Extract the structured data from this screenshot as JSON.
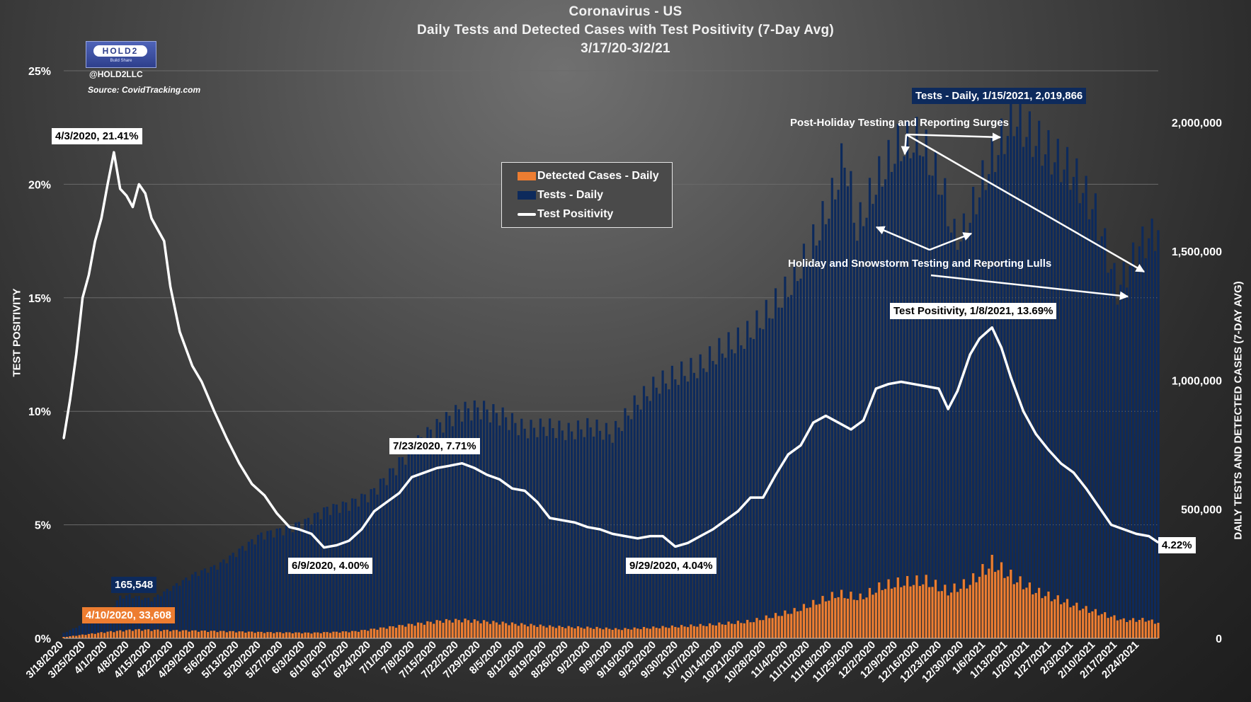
{
  "header": {
    "title": "Coronavirus - US",
    "subtitle": "Daily Tests and Detected Cases with Test Positivity (7-Day Avg)",
    "date_range": "3/17/20-3/2/21"
  },
  "branding": {
    "logo_text": "HOLD2",
    "logo_subtext": "Build  Share",
    "handle": "@HOLD2LLC",
    "source": "Source: CovidTracking.com"
  },
  "legend": {
    "cases_label": "Detected Cases - Daily",
    "tests_label": "Tests - Daily",
    "positivity_label": "Test Positivity"
  },
  "axes": {
    "left_title": "TEST POSITIVITY",
    "right_title": "DAILY TESTS AND DETECTED CASES (7-DAY AVG)"
  },
  "callouts": {
    "peak_positivity": "4/3/2020, 21.41%",
    "positivity_jun": "6/9/2020, 4.00%",
    "positivity_jul": "7/23/2020, 7.71%",
    "positivity_sep": "9/29/2020, 4.04%",
    "positivity_jan": "Test Positivity, 1/8/2021, 13.69%",
    "positivity_last": "4.22%",
    "tests_peak": "Tests - Daily, 1/15/2021, 2,019,866",
    "tests_apr": "165,548",
    "cases_apr": "4/10/2020, 33,608"
  },
  "notes": {
    "surges": "Post-Holiday Testing and Reporting Surges",
    "lulls": "Holiday and Snowstorm Testing and Reporting Lulls"
  },
  "colors": {
    "tests": "#0d2a5c",
    "cases": "#ed7d31",
    "positivity": "#ffffff",
    "background": "#3a3a3a"
  },
  "chart_data": {
    "type": "bar",
    "x_start": "2020-03-18",
    "x_end": "2021-03-02",
    "x_tick_labels": [
      "3/18/2020",
      "3/25/2020",
      "4/1/2020",
      "4/8/2020",
      "4/15/2020",
      "4/22/2020",
      "4/29/2020",
      "5/6/2020",
      "5/13/2020",
      "5/20/2020",
      "5/27/2020",
      "6/3/2020",
      "6/10/2020",
      "6/17/2020",
      "6/24/2020",
      "7/1/2020",
      "7/8/2020",
      "7/15/2020",
      "7/22/2020",
      "7/29/2020",
      "8/5/2020",
      "8/12/2020",
      "8/19/2020",
      "8/26/2020",
      "9/2/2020",
      "9/9/2020",
      "9/16/2020",
      "9/23/2020",
      "9/30/2020",
      "10/7/2020",
      "10/14/2020",
      "10/21/2020",
      "10/28/2020",
      "11/4/2020",
      "11/11/2020",
      "11/18/2020",
      "11/25/2020",
      "12/2/2020",
      "12/9/2020",
      "12/16/2020",
      "12/23/2020",
      "12/30/2020",
      "1/6/2021",
      "1/13/2021",
      "1/20/2021",
      "1/27/2021",
      "2/3/2021",
      "2/10/2021",
      "2/17/2021",
      "2/24/2021"
    ],
    "y_left": {
      "label": "TEST POSITIVITY",
      "min": 0,
      "max": 25,
      "ticks": [
        "0%",
        "5%",
        "10%",
        "15%",
        "20%",
        "25%"
      ]
    },
    "y_right": {
      "label": "DAILY TESTS AND DETECTED CASES (7-DAY AVG)",
      "min": 0,
      "max": 2200000,
      "ticks": [
        "0",
        "500,000",
        "1,000,000",
        "1,500,000",
        "2,000,000"
      ]
    },
    "series": [
      {
        "name": "Tests - Daily",
        "type": "bar",
        "axis": "right",
        "points": [
          [
            "2020-03-18",
            20000
          ],
          [
            "2020-03-25",
            60000
          ],
          [
            "2020-04-01",
            100000
          ],
          [
            "2020-04-05",
            160000
          ],
          [
            "2020-04-08",
            165548
          ],
          [
            "2020-04-15",
            150000
          ],
          [
            "2020-04-22",
            200000
          ],
          [
            "2020-04-29",
            250000
          ],
          [
            "2020-05-06",
            280000
          ],
          [
            "2020-05-13",
            340000
          ],
          [
            "2020-05-20",
            400000
          ],
          [
            "2020-05-27",
            420000
          ],
          [
            "2020-06-03",
            450000
          ],
          [
            "2020-06-10",
            500000
          ],
          [
            "2020-06-17",
            520000
          ],
          [
            "2020-06-24",
            560000
          ],
          [
            "2020-07-01",
            650000
          ],
          [
            "2020-07-08",
            750000
          ],
          [
            "2020-07-15",
            820000
          ],
          [
            "2020-07-22",
            880000
          ],
          [
            "2020-07-29",
            890000
          ],
          [
            "2020-08-05",
            860000
          ],
          [
            "2020-08-12",
            810000
          ],
          [
            "2020-08-19",
            820000
          ],
          [
            "2020-08-26",
            800000
          ],
          [
            "2020-09-02",
            820000
          ],
          [
            "2020-09-09",
            790000
          ],
          [
            "2020-09-16",
            900000
          ],
          [
            "2020-09-23",
            980000
          ],
          [
            "2020-09-30",
            1020000
          ],
          [
            "2020-10-07",
            1050000
          ],
          [
            "2020-10-14",
            1120000
          ],
          [
            "2020-10-21",
            1160000
          ],
          [
            "2020-10-28",
            1250000
          ],
          [
            "2020-11-04",
            1350000
          ],
          [
            "2020-11-11",
            1500000
          ],
          [
            "2020-11-18",
            1700000
          ],
          [
            "2020-11-22",
            1870000
          ],
          [
            "2020-11-26",
            1580000
          ],
          [
            "2020-12-02",
            1760000
          ],
          [
            "2020-12-09",
            1900000
          ],
          [
            "2020-12-16",
            1930000
          ],
          [
            "2020-12-23",
            1750000
          ],
          [
            "2020-12-27",
            1550000
          ],
          [
            "2020-12-30",
            1570000
          ],
          [
            "2021-01-06",
            1800000
          ],
          [
            "2021-01-15",
            2019866
          ],
          [
            "2021-01-20",
            1950000
          ],
          [
            "2021-01-27",
            1870000
          ],
          [
            "2021-02-03",
            1800000
          ],
          [
            "2021-02-10",
            1650000
          ],
          [
            "2021-02-17",
            1350000
          ],
          [
            "2021-02-20",
            1420000
          ],
          [
            "2021-02-24",
            1520000
          ],
          [
            "2021-03-02",
            1580000
          ]
        ]
      },
      {
        "name": "Detected Cases - Daily",
        "type": "bar",
        "axis": "right",
        "points": [
          [
            "2020-03-18",
            5000
          ],
          [
            "2020-03-25",
            15000
          ],
          [
            "2020-04-01",
            25000
          ],
          [
            "2020-04-10",
            33608
          ],
          [
            "2020-04-24",
            30000
          ],
          [
            "2020-05-08",
            27000
          ],
          [
            "2020-05-22",
            23000
          ],
          [
            "2020-06-05",
            21000
          ],
          [
            "2020-06-19",
            27000
          ],
          [
            "2020-07-03",
            48000
          ],
          [
            "2020-07-17",
            68000
          ],
          [
            "2020-07-24",
            70000
          ],
          [
            "2020-08-07",
            57000
          ],
          [
            "2020-08-21",
            45000
          ],
          [
            "2020-09-04",
            40000
          ],
          [
            "2020-09-11",
            35000
          ],
          [
            "2020-09-25",
            43000
          ],
          [
            "2020-10-09",
            51000
          ],
          [
            "2020-10-23",
            65000
          ],
          [
            "2020-11-06",
            105000
          ],
          [
            "2020-11-20",
            170000
          ],
          [
            "2020-11-27",
            155000
          ],
          [
            "2020-12-04",
            200000
          ],
          [
            "2020-12-11",
            215000
          ],
          [
            "2020-12-18",
            220000
          ],
          [
            "2020-12-25",
            180000
          ],
          [
            "2021-01-01",
            215000
          ],
          [
            "2021-01-08",
            290000
          ],
          [
            "2021-01-15",
            230000
          ],
          [
            "2021-01-22",
            180000
          ],
          [
            "2021-01-29",
            150000
          ],
          [
            "2021-02-05",
            120000
          ],
          [
            "2021-02-12",
            95000
          ],
          [
            "2021-02-19",
            70000
          ],
          [
            "2021-02-26",
            72000
          ],
          [
            "2021-03-02",
            60000
          ]
        ]
      },
      {
        "name": "Test Positivity",
        "type": "line",
        "axis": "left",
        "points": [
          [
            "2020-03-18",
            8.8
          ],
          [
            "2020-03-20",
            10.5
          ],
          [
            "2020-03-22",
            12.5
          ],
          [
            "2020-03-24",
            15.0
          ],
          [
            "2020-03-26",
            16.0
          ],
          [
            "2020-03-28",
            17.5
          ],
          [
            "2020-03-30",
            18.5
          ],
          [
            "2020-04-01",
            20.0
          ],
          [
            "2020-04-03",
            21.41
          ],
          [
            "2020-04-05",
            19.8
          ],
          [
            "2020-04-07",
            19.5
          ],
          [
            "2020-04-09",
            19.0
          ],
          [
            "2020-04-11",
            20.0
          ],
          [
            "2020-04-13",
            19.6
          ],
          [
            "2020-04-15",
            18.5
          ],
          [
            "2020-04-17",
            18.0
          ],
          [
            "2020-04-19",
            17.5
          ],
          [
            "2020-04-21",
            15.5
          ],
          [
            "2020-04-24",
            13.5
          ],
          [
            "2020-04-28",
            12.0
          ],
          [
            "2020-05-01",
            11.3
          ],
          [
            "2020-05-05",
            10.0
          ],
          [
            "2020-05-09",
            8.8
          ],
          [
            "2020-05-13",
            7.7
          ],
          [
            "2020-05-17",
            6.8
          ],
          [
            "2020-05-21",
            6.3
          ],
          [
            "2020-05-25",
            5.5
          ],
          [
            "2020-05-29",
            4.9
          ],
          [
            "2020-06-01",
            4.8
          ],
          [
            "2020-06-05",
            4.6
          ],
          [
            "2020-06-09",
            4.0
          ],
          [
            "2020-06-13",
            4.1
          ],
          [
            "2020-06-17",
            4.3
          ],
          [
            "2020-06-21",
            4.8
          ],
          [
            "2020-06-25",
            5.6
          ],
          [
            "2020-06-29",
            6.0
          ],
          [
            "2020-07-03",
            6.4
          ],
          [
            "2020-07-07",
            7.1
          ],
          [
            "2020-07-11",
            7.3
          ],
          [
            "2020-07-15",
            7.5
          ],
          [
            "2020-07-19",
            7.6
          ],
          [
            "2020-07-23",
            7.71
          ],
          [
            "2020-07-27",
            7.5
          ],
          [
            "2020-07-31",
            7.2
          ],
          [
            "2020-08-04",
            7.0
          ],
          [
            "2020-08-08",
            6.6
          ],
          [
            "2020-08-12",
            6.5
          ],
          [
            "2020-08-16",
            6.0
          ],
          [
            "2020-08-20",
            5.3
          ],
          [
            "2020-08-24",
            5.2
          ],
          [
            "2020-08-28",
            5.1
          ],
          [
            "2020-09-01",
            4.9
          ],
          [
            "2020-09-05",
            4.8
          ],
          [
            "2020-09-09",
            4.6
          ],
          [
            "2020-09-13",
            4.5
          ],
          [
            "2020-09-17",
            4.4
          ],
          [
            "2020-09-21",
            4.5
          ],
          [
            "2020-09-25",
            4.5
          ],
          [
            "2020-09-29",
            4.04
          ],
          [
            "2020-10-03",
            4.2
          ],
          [
            "2020-10-07",
            4.5
          ],
          [
            "2020-10-11",
            4.8
          ],
          [
            "2020-10-15",
            5.2
          ],
          [
            "2020-10-19",
            5.6
          ],
          [
            "2020-10-23",
            6.2
          ],
          [
            "2020-10-27",
            6.2
          ],
          [
            "2020-10-31",
            7.2
          ],
          [
            "2020-11-04",
            8.1
          ],
          [
            "2020-11-08",
            8.5
          ],
          [
            "2020-11-12",
            9.5
          ],
          [
            "2020-11-16",
            9.8
          ],
          [
            "2020-11-20",
            9.5
          ],
          [
            "2020-11-24",
            9.2
          ],
          [
            "2020-11-28",
            9.6
          ],
          [
            "2020-12-02",
            11.0
          ],
          [
            "2020-12-06",
            11.2
          ],
          [
            "2020-12-10",
            11.3
          ],
          [
            "2020-12-14",
            11.2
          ],
          [
            "2020-12-18",
            11.1
          ],
          [
            "2020-12-22",
            11.0
          ],
          [
            "2020-12-25",
            10.1
          ],
          [
            "2020-12-28",
            10.9
          ],
          [
            "2021-01-01",
            12.5
          ],
          [
            "2021-01-04",
            13.2
          ],
          [
            "2021-01-08",
            13.69
          ],
          [
            "2021-01-11",
            12.8
          ],
          [
            "2021-01-14",
            11.5
          ],
          [
            "2021-01-18",
            10.0
          ],
          [
            "2021-01-22",
            9.0
          ],
          [
            "2021-01-26",
            8.3
          ],
          [
            "2021-01-30",
            7.7
          ],
          [
            "2021-02-03",
            7.3
          ],
          [
            "2021-02-07",
            6.6
          ],
          [
            "2021-02-11",
            5.8
          ],
          [
            "2021-02-15",
            5.0
          ],
          [
            "2021-02-19",
            4.8
          ],
          [
            "2021-02-23",
            4.6
          ],
          [
            "2021-02-27",
            4.5
          ],
          [
            "2021-03-02",
            4.22
          ]
        ]
      }
    ],
    "grid": true,
    "legend_position": "top-center"
  }
}
